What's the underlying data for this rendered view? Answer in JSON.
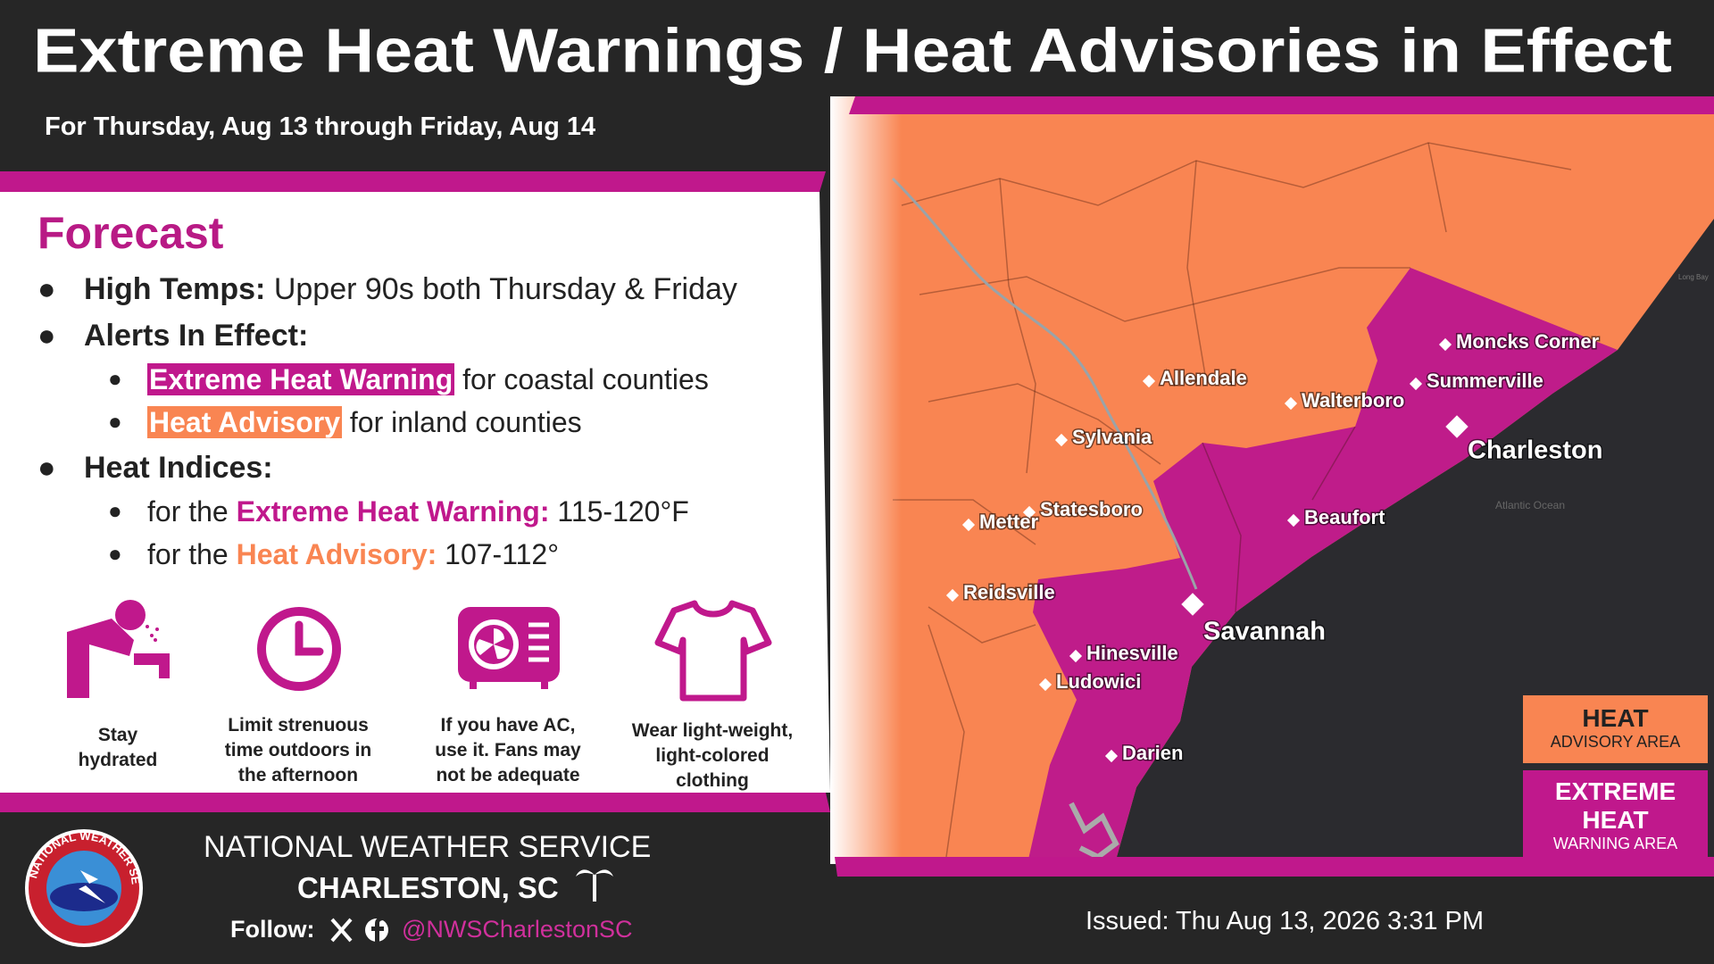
{
  "header": {
    "title": "Extreme Heat Warnings / Heat Advisories in Effect",
    "subtitle": "For Thursday, Aug 13 through Friday, Aug 14"
  },
  "forecast": {
    "heading": "Forecast",
    "high_temps": {
      "label": "High Temps:",
      "text": "Upper 90s both Thursday & Friday"
    },
    "alerts": {
      "label": "Alerts In Effect:",
      "items": [
        {
          "tag": "Extreme Heat Warning",
          "text": "for coastal counties"
        },
        {
          "tag": "Heat Advisory",
          "text": "for inland counties"
        }
      ]
    },
    "indices": {
      "label": "Heat Indices:",
      "items": [
        {
          "prefix": "for the",
          "tag": "Extreme Heat Warning:",
          "text": "115-120°F"
        },
        {
          "prefix": "for the",
          "tag": "Heat Advisory:",
          "text": "107-112°"
        }
      ]
    }
  },
  "tips": [
    "Stay hydrated",
    "Limit strenuous time outdoors in the afternoon",
    "If you have AC, use it. Fans may not be adequate",
    "Wear light-weight, light-colored clothing"
  ],
  "map": {
    "cities": [
      "Moncks Corner",
      "Summerville",
      "Charleston",
      "Allendale",
      "Walterboro",
      "Sylvania",
      "Statesboro",
      "Metter",
      "Beaufort",
      "Reidsville",
      "Savannah",
      "Hinesville",
      "Ludowici",
      "Darien"
    ],
    "ocean_label": "Atlantic Ocean",
    "bay_label": "Long Bay"
  },
  "legend": [
    {
      "title": "HEAT",
      "subtitle": "ADVISORY AREA"
    },
    {
      "title": "EXTREME HEAT",
      "subtitle": "WARNING AREA"
    }
  ],
  "footer": {
    "agency": "NATIONAL WEATHER SERVICE",
    "office": "CHARLESTON, SC",
    "follow": "Follow:",
    "handle": "@NWSCharlestonSC",
    "issued": "Issued: Thu Aug 13, 2026 3:31 PM",
    "logo_text": "NATIONAL WEATHER SERVICE"
  }
}
